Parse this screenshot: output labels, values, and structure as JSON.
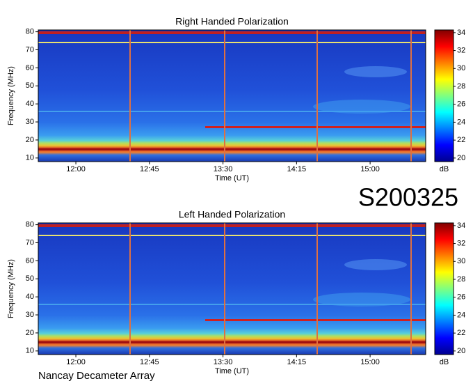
{
  "chart_data": [
    {
      "type": "heatmap",
      "title": "Right Handed Polarization",
      "x_label": "Time (UT)",
      "y_label": "Frequency (MHz)",
      "xlim": [
        697,
        934
      ],
      "xticks": [
        {
          "value": 720,
          "label": "12:00"
        },
        {
          "value": 765,
          "label": "12:45"
        },
        {
          "value": 810,
          "label": "13:30"
        },
        {
          "value": 855,
          "label": "14:15"
        },
        {
          "value": 900,
          "label": "15:00"
        }
      ],
      "ylim": [
        8,
        81
      ],
      "yticks": [
        10,
        20,
        30,
        40,
        50,
        60,
        70,
        80
      ],
      "colorbar": {
        "label": "dB",
        "lim": [
          19.6,
          34.3
        ],
        "ticks": [
          20,
          22,
          24,
          26,
          28,
          30,
          32,
          34
        ]
      }
    },
    {
      "type": "heatmap",
      "title": "Left Handed Polarization",
      "x_label": "Time (UT)",
      "y_label": "Frequency (MHz)",
      "xlim": [
        697,
        934
      ],
      "xticks": [
        {
          "value": 720,
          "label": "12:00"
        },
        {
          "value": 765,
          "label": "12:45"
        },
        {
          "value": 810,
          "label": "13:30"
        },
        {
          "value": 855,
          "label": "14:15"
        },
        {
          "value": 900,
          "label": "15:00"
        }
      ],
      "ylim": [
        8,
        81
      ],
      "yticks": [
        10,
        20,
        30,
        40,
        50,
        60,
        70,
        80
      ],
      "colorbar": {
        "label": "dB",
        "lim": [
          19.6,
          34.3
        ],
        "ticks": [
          20,
          22,
          24,
          26,
          28,
          30,
          32,
          34
        ]
      }
    }
  ],
  "annotations": {
    "event": "S200325",
    "footer": "Nancay Decameter Array"
  }
}
